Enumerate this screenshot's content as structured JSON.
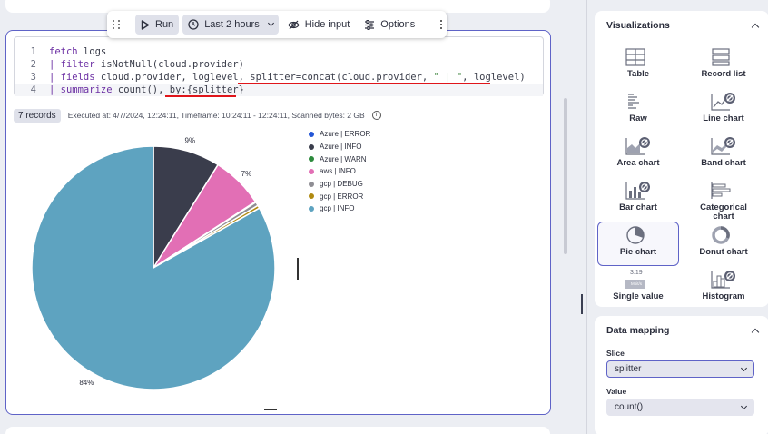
{
  "toolbar": {
    "run_label": "Run",
    "time_label": "Last 2 hours",
    "hide_input_label": "Hide input",
    "options_label": "Options"
  },
  "editor": {
    "lines": [
      {
        "num": "1",
        "text": "fetch logs"
      },
      {
        "num": "2",
        "text": "| filter isNotNull(cloud.provider)"
      },
      {
        "num": "3",
        "text": "| fields cloud.provider, loglevel, splitter=concat(cloud.provider, \" | \", loglevel)"
      },
      {
        "num": "4",
        "text": "| summarize count(), by:{splitter}"
      }
    ]
  },
  "results": {
    "records_badge": "7 records",
    "meta": "Executed at: 4/7/2024, 12:24:11, Timeframe: 10:24:11 - 12:24:11, Scanned bytes: 2 GB"
  },
  "chart_data": {
    "type": "pie",
    "labels": [
      "Azure | ERROR",
      "Azure | INFO",
      "Azure | WARN",
      "aws | INFO",
      "gcp | DEBUG",
      "gcp | ERROR",
      "gcp | INFO"
    ],
    "values": [
      0.05,
      9,
      0.05,
      7,
      0.5,
      0.4,
      84
    ],
    "data_labels": [
      "",
      "9%",
      "",
      "7%",
      "",
      "",
      "84%"
    ],
    "colors": [
      "#2456d6",
      "#3a3d4c",
      "#2c8a3c",
      "#e26fb5",
      "#8f8e94",
      "#b08a10",
      "#5ea3c0"
    ],
    "legend_position": "right"
  },
  "visualizations": {
    "title": "Visualizations",
    "items": [
      {
        "label": "Table",
        "icon": "table-icon"
      },
      {
        "label": "Record list",
        "icon": "record-list-icon"
      },
      {
        "label": "Raw",
        "icon": "raw-icon"
      },
      {
        "label": "Line chart",
        "icon": "line-chart-icon"
      },
      {
        "label": "Area chart",
        "icon": "area-chart-icon"
      },
      {
        "label": "Band chart",
        "icon": "band-chart-icon"
      },
      {
        "label": "Bar chart",
        "icon": "bar-chart-icon"
      },
      {
        "label": "Categorical chart",
        "icon": "categorical-chart-icon"
      },
      {
        "label": "Pie chart",
        "icon": "pie-chart-icon",
        "selected": true
      },
      {
        "label": "Donut chart",
        "icon": "donut-chart-icon"
      },
      {
        "label": "Single value",
        "icon": "single-value-icon",
        "icon_text_value": "3.19",
        "icon_text_unit": "Mbit/s"
      },
      {
        "label": "Histogram",
        "icon": "histogram-icon"
      }
    ]
  },
  "data_mapping": {
    "title": "Data mapping",
    "slice_label": "Slice",
    "slice_value": "splitter",
    "value_label": "Value",
    "value_value": "count()"
  }
}
